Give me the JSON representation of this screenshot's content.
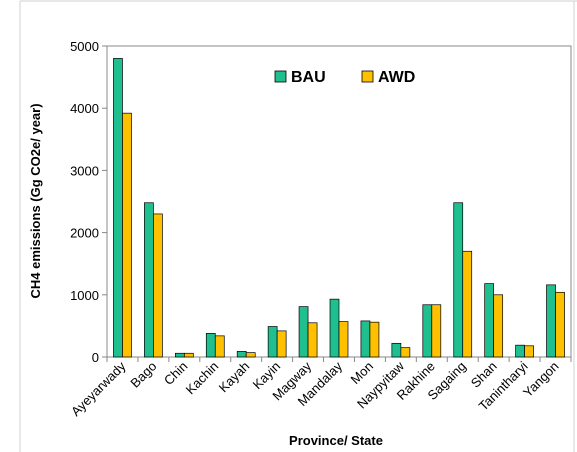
{
  "chart_data": {
    "type": "bar",
    "title": "",
    "xlabel": "Province/ State",
    "ylabel": "CH4 emissions (Gg CO2e/ year)",
    "ylim": [
      0,
      5000
    ],
    "yticks": [
      "0",
      "1000",
      "2000",
      "3000",
      "4000",
      "5000"
    ],
    "grid": false,
    "legend_position": "top-center",
    "categories": [
      "Ayeyarwady",
      "Bago",
      "Chin",
      "Kachin",
      "Kayah",
      "Kayin",
      "Magway",
      "Mandalay",
      "Mon",
      "Naypyitaw",
      "Rakhine",
      "Sagaing",
      "Shan",
      "Tanintharyi",
      "Yangon"
    ],
    "series": [
      {
        "name": "BAU",
        "color": "#1fbf8f",
        "values": [
          4800,
          2480,
          60,
          380,
          90,
          490,
          810,
          930,
          580,
          220,
          840,
          2480,
          1180,
          190,
          1160
        ]
      },
      {
        "name": "AWD",
        "color": "#ffc000",
        "values": [
          3920,
          2300,
          60,
          340,
          70,
          420,
          550,
          570,
          560,
          150,
          840,
          1700,
          1000,
          180,
          1040
        ]
      }
    ]
  }
}
